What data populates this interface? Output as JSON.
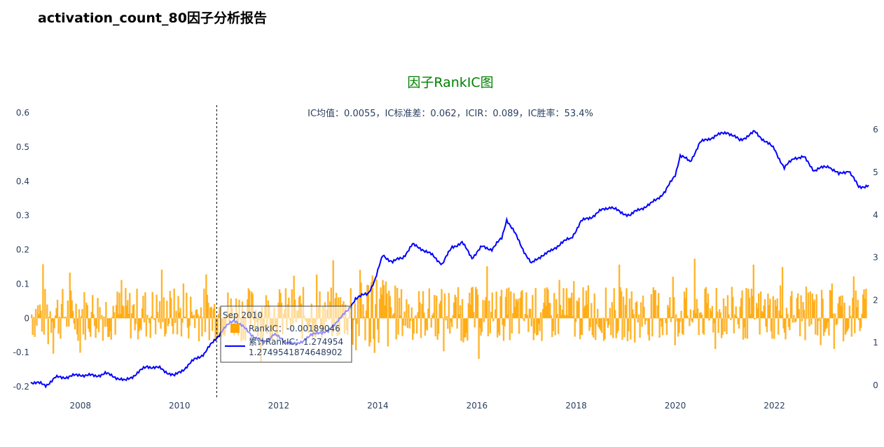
{
  "report": {
    "title": "activation_count_80因子分析报告"
  },
  "chart_data": {
    "type": "bar+line",
    "title": "因子RankIC图",
    "subtitle": "IC均值：0.0055，IC标准差：0.062，ICIR：0.089，IC胜率：53.4%",
    "x_range": [
      2007.0,
      2023.9
    ],
    "x_ticks": [
      "2008",
      "2010",
      "2012",
      "2014",
      "2016",
      "2018",
      "2020",
      "2022"
    ],
    "y_left": {
      "range": [
        -0.2,
        0.6
      ],
      "ticks": [
        "-0.2",
        "-0.1",
        "0",
        "0.1",
        "0.2",
        "0.3",
        "0.4",
        "0.5",
        "0.6"
      ]
    },
    "y_right": {
      "range": [
        0,
        6.3
      ],
      "ticks": [
        "0",
        "1",
        "2",
        "3",
        "4",
        "5",
        "6"
      ]
    },
    "colors": {
      "bar": "#FFA500",
      "line": "#0000FF",
      "title": "#008000",
      "axis_text": "#2a3f5f"
    },
    "series": [
      {
        "name": "RankIC",
        "type": "bar",
        "axis": "left",
        "note": "monthly RankIC bars, roughly within -0.2 to 0.23"
      },
      {
        "name": "累计RankIC",
        "type": "line",
        "axis": "right",
        "points": [
          [
            2007.0,
            0.08
          ],
          [
            2007.15,
            0.05
          ],
          [
            2007.3,
            0.0
          ],
          [
            2007.5,
            0.18
          ],
          [
            2007.75,
            0.2
          ],
          [
            2008.0,
            0.25
          ],
          [
            2008.3,
            0.22
          ],
          [
            2008.5,
            0.28
          ],
          [
            2008.7,
            0.2
          ],
          [
            2008.9,
            0.1
          ],
          [
            2009.1,
            0.25
          ],
          [
            2009.35,
            0.45
          ],
          [
            2009.6,
            0.4
          ],
          [
            2009.9,
            0.22
          ],
          [
            2010.05,
            0.35
          ],
          [
            2010.3,
            0.6
          ],
          [
            2010.5,
            0.75
          ],
          [
            2010.7,
            1.05
          ],
          [
            2010.85,
            1.27
          ],
          [
            2011.1,
            1.55
          ],
          [
            2011.3,
            1.35
          ],
          [
            2011.5,
            1.15
          ],
          [
            2011.7,
            1.0
          ],
          [
            2011.9,
            1.2
          ],
          [
            2012.1,
            1.05
          ],
          [
            2012.35,
            0.95
          ],
          [
            2012.55,
            1.1
          ],
          [
            2012.8,
            1.25
          ],
          [
            2013.0,
            1.25
          ],
          [
            2013.2,
            1.55
          ],
          [
            2013.4,
            1.75
          ],
          [
            2013.55,
            2.05
          ],
          [
            2013.8,
            2.15
          ],
          [
            2013.95,
            2.5
          ],
          [
            2014.1,
            3.05
          ],
          [
            2014.3,
            2.9
          ],
          [
            2014.5,
            3.0
          ],
          [
            2014.7,
            3.3
          ],
          [
            2014.9,
            3.2
          ],
          [
            2015.1,
            3.05
          ],
          [
            2015.3,
            2.85
          ],
          [
            2015.5,
            3.25
          ],
          [
            2015.7,
            3.35
          ],
          [
            2015.9,
            3.0
          ],
          [
            2016.1,
            3.25
          ],
          [
            2016.3,
            3.2
          ],
          [
            2016.5,
            3.45
          ],
          [
            2016.6,
            3.9
          ],
          [
            2016.75,
            3.6
          ],
          [
            2016.95,
            3.15
          ],
          [
            2017.1,
            2.85
          ],
          [
            2017.3,
            3.05
          ],
          [
            2017.5,
            3.15
          ],
          [
            2017.7,
            3.35
          ],
          [
            2017.9,
            3.45
          ],
          [
            2018.1,
            3.85
          ],
          [
            2018.3,
            3.95
          ],
          [
            2018.5,
            4.1
          ],
          [
            2018.7,
            4.2
          ],
          [
            2018.9,
            4.05
          ],
          [
            2019.1,
            4.0
          ],
          [
            2019.3,
            4.15
          ],
          [
            2019.5,
            4.25
          ],
          [
            2019.8,
            4.55
          ],
          [
            2020.0,
            4.95
          ],
          [
            2020.1,
            5.4
          ],
          [
            2020.3,
            5.25
          ],
          [
            2020.5,
            5.7
          ],
          [
            2020.8,
            5.85
          ],
          [
            2021.05,
            5.95
          ],
          [
            2021.3,
            5.75
          ],
          [
            2021.6,
            5.95
          ],
          [
            2021.8,
            5.75
          ],
          [
            2022.0,
            5.55
          ],
          [
            2022.2,
            5.1
          ],
          [
            2022.4,
            5.35
          ],
          [
            2022.6,
            5.35
          ],
          [
            2022.8,
            5.05
          ],
          [
            2023.1,
            5.15
          ],
          [
            2023.3,
            4.95
          ],
          [
            2023.5,
            5.05
          ],
          [
            2023.7,
            4.65
          ],
          [
            2023.9,
            4.7
          ]
        ]
      }
    ],
    "hover": {
      "x": 2010.75,
      "date_label": "Sep 2010",
      "rows": [
        {
          "label": "RankIC：-0.00189046"
        },
        {
          "label": "累计RankIC：1.274954"
        },
        {
          "label": "1.2749541874648902"
        }
      ]
    }
  }
}
